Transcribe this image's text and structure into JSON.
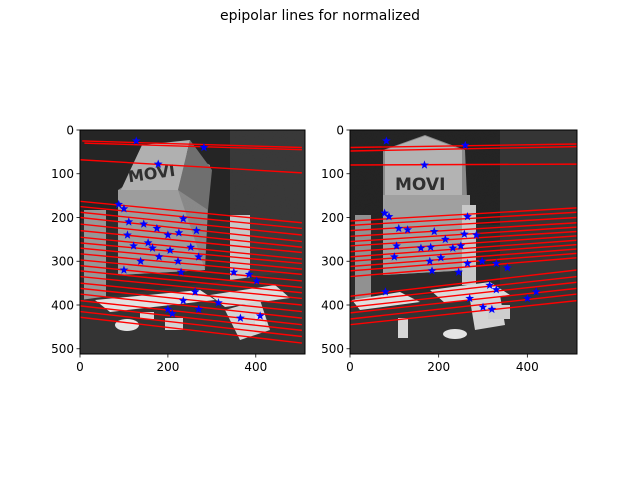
{
  "figure": {
    "title": "epipolar lines for normalized"
  },
  "chart_data": [
    {
      "type": "scatter",
      "name_key": "left",
      "xlim": [
        0,
        512
      ],
      "ylim": [
        512,
        0
      ],
      "xticks": [
        0,
        200,
        400
      ],
      "yticks": [
        0,
        100,
        200,
        300,
        400,
        500
      ],
      "line_color": "#ff0000",
      "point_color": "#0000ff",
      "points": [
        [
          128,
          25
        ],
        [
          178,
          78
        ],
        [
          282,
          40
        ],
        [
          88,
          170
        ],
        [
          100,
          180
        ],
        [
          111,
          210
        ],
        [
          145,
          215
        ],
        [
          175,
          225
        ],
        [
          235,
          203
        ],
        [
          200,
          240
        ],
        [
          225,
          235
        ],
        [
          265,
          230
        ],
        [
          108,
          240
        ],
        [
          122,
          265
        ],
        [
          155,
          258
        ],
        [
          165,
          270
        ],
        [
          205,
          275
        ],
        [
          252,
          268
        ],
        [
          138,
          300
        ],
        [
          180,
          290
        ],
        [
          223,
          300
        ],
        [
          270,
          290
        ],
        [
          100,
          320
        ],
        [
          230,
          325
        ],
        [
          350,
          325
        ],
        [
          385,
          330
        ],
        [
          402,
          345
        ],
        [
          262,
          370
        ],
        [
          235,
          390
        ],
        [
          200,
          410
        ],
        [
          210,
          420
        ],
        [
          365,
          430
        ],
        [
          410,
          425
        ],
        [
          315,
          395
        ],
        [
          270,
          410
        ]
      ],
      "lines": [
        [
          10,
          30,
          505,
          45
        ],
        [
          5,
          25,
          505,
          40
        ],
        [
          0,
          68,
          505,
          98
        ],
        [
          0,
          163,
          505,
          212
        ],
        [
          0,
          175,
          505,
          225
        ],
        [
          0,
          188,
          505,
          240
        ],
        [
          0,
          200,
          505,
          255
        ],
        [
          0,
          215,
          505,
          268
        ],
        [
          0,
          230,
          505,
          280
        ],
        [
          0,
          245,
          505,
          295
        ],
        [
          0,
          258,
          505,
          305
        ],
        [
          0,
          270,
          505,
          318
        ],
        [
          0,
          283,
          505,
          330
        ],
        [
          0,
          297,
          505,
          345
        ],
        [
          0,
          310,
          505,
          360
        ],
        [
          0,
          322,
          505,
          372
        ],
        [
          0,
          335,
          505,
          385
        ],
        [
          0,
          350,
          505,
          400
        ],
        [
          0,
          362,
          505,
          415
        ],
        [
          0,
          375,
          505,
          430
        ],
        [
          0,
          390,
          505,
          445
        ],
        [
          0,
          402,
          505,
          458
        ],
        [
          0,
          415,
          505,
          472
        ],
        [
          0,
          428,
          505,
          487
        ]
      ]
    },
    {
      "type": "scatter",
      "name_key": "right",
      "xlim": [
        0,
        512
      ],
      "ylim": [
        512,
        0
      ],
      "xticks": [
        0,
        200,
        400
      ],
      "yticks": [
        0,
        100,
        200,
        300,
        400,
        500
      ],
      "line_color": "#ff0000",
      "point_color": "#0000ff",
      "points": [
        [
          82,
          25
        ],
        [
          260,
          35
        ],
        [
          168,
          80
        ],
        [
          78,
          190
        ],
        [
          88,
          198
        ],
        [
          265,
          198
        ],
        [
          110,
          225
        ],
        [
          130,
          228
        ],
        [
          190,
          232
        ],
        [
          215,
          250
        ],
        [
          258,
          238
        ],
        [
          285,
          240
        ],
        [
          105,
          265
        ],
        [
          160,
          270
        ],
        [
          182,
          268
        ],
        [
          232,
          270
        ],
        [
          250,
          265
        ],
        [
          180,
          300
        ],
        [
          205,
          292
        ],
        [
          265,
          305
        ],
        [
          298,
          300
        ],
        [
          330,
          305
        ],
        [
          355,
          315
        ],
        [
          100,
          290
        ],
        [
          185,
          322
        ],
        [
          245,
          325
        ],
        [
          315,
          355
        ],
        [
          330,
          365
        ],
        [
          80,
          370
        ],
        [
          400,
          385
        ],
        [
          420,
          370
        ],
        [
          270,
          385
        ],
        [
          300,
          405
        ],
        [
          320,
          410
        ]
      ],
      "lines": [
        [
          0,
          40,
          512,
          32
        ],
        [
          0,
          48,
          512,
          38
        ],
        [
          0,
          80,
          512,
          78
        ],
        [
          0,
          208,
          512,
          178
        ],
        [
          0,
          218,
          512,
          188
        ],
        [
          0,
          230,
          512,
          200
        ],
        [
          0,
          243,
          512,
          212
        ],
        [
          0,
          255,
          512,
          222
        ],
        [
          0,
          265,
          512,
          232
        ],
        [
          0,
          278,
          512,
          242
        ],
        [
          0,
          290,
          512,
          252
        ],
        [
          0,
          300,
          512,
          262
        ],
        [
          0,
          312,
          512,
          272
        ],
        [
          0,
          322,
          512,
          282
        ],
        [
          0,
          335,
          512,
          292
        ],
        [
          0,
          380,
          512,
          320
        ],
        [
          0,
          392,
          512,
          335
        ],
        [
          0,
          405,
          512,
          348
        ],
        [
          0,
          418,
          512,
          362
        ],
        [
          0,
          432,
          512,
          375
        ],
        [
          0,
          445,
          512,
          390
        ]
      ]
    }
  ]
}
